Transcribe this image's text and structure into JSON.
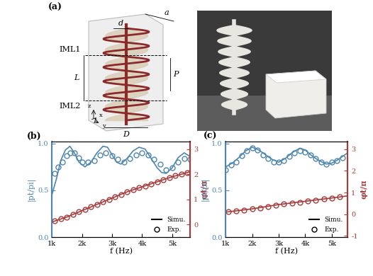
{
  "panel_a": {
    "label": "(a)",
    "dimensions": [
      "a",
      "d",
      "L",
      "P",
      "D"
    ],
    "sections": [
      "IML1",
      "IML2"
    ],
    "coordinate_axes": [
      "z",
      "x",
      "y"
    ]
  },
  "chart_data": [
    {
      "type": "line",
      "title": "(b)",
      "x_label": "f (Hz)",
      "y_label": "|pt/pi|",
      "y2_label": "φt/π",
      "xlim": [
        1000,
        5600
      ],
      "xticks": [
        {
          "value": 1000,
          "label": "1k"
        },
        {
          "value": 2000,
          "label": "2k"
        },
        {
          "value": 3000,
          "label": "3k"
        },
        {
          "value": 4000,
          "label": "4k"
        },
        {
          "value": 5000,
          "label": "5k"
        }
      ],
      "ylim": [
        0,
        1.02
      ],
      "yticks": [
        0.0,
        0.5,
        1.0
      ],
      "y2lim": [
        -0.5,
        3.3
      ],
      "y2ticks": [
        0,
        1,
        2,
        3
      ],
      "legend": "lower right",
      "series": [
        {
          "name": "Simu.",
          "color": "#4f86b0",
          "marker": "none",
          "line_style": "solid",
          "axis": "y",
          "x": [
            1000,
            1150,
            1300,
            1450,
            1600,
            1750,
            1900,
            2100,
            2300,
            2500,
            2700,
            2850,
            3000,
            3150,
            3300,
            3500,
            3700,
            3900,
            4100,
            4300,
            4500,
            4650,
            4800,
            5000,
            5200,
            5400,
            5600
          ],
          "values": [
            0.45,
            0.62,
            0.82,
            0.93,
            0.97,
            0.9,
            0.8,
            0.75,
            0.8,
            0.9,
            0.97,
            0.96,
            0.88,
            0.8,
            0.78,
            0.84,
            0.92,
            0.96,
            0.94,
            0.84,
            0.74,
            0.69,
            0.68,
            0.74,
            0.85,
            0.9,
            0.86
          ]
        },
        {
          "name": "Exp.",
          "color": "#4f86b0",
          "marker": "circle",
          "line_style": "none",
          "axis": "y",
          "x": [
            1100,
            1200,
            1350,
            1500,
            1600,
            1750,
            1900,
            2000,
            2200,
            2400,
            2600,
            2800,
            3000,
            3200,
            3400,
            3600,
            3800,
            4000,
            4200,
            4400,
            4600,
            4800,
            5000,
            5200,
            5400,
            5600
          ],
          "values": [
            0.68,
            0.75,
            0.8,
            0.87,
            0.9,
            0.9,
            0.85,
            0.8,
            0.8,
            0.82,
            0.88,
            0.9,
            0.87,
            0.83,
            0.8,
            0.84,
            0.88,
            0.9,
            0.88,
            0.83,
            0.78,
            0.72,
            0.74,
            0.8,
            0.84,
            0.83
          ]
        },
        {
          "name": "Simu.",
          "color": "#a83a3a",
          "marker": "none",
          "line_style": "solid",
          "axis": "y2",
          "x": [
            1000,
            1500,
            2000,
            2500,
            3000,
            3500,
            4000,
            4500,
            5000,
            5600
          ],
          "values": [
            0.1,
            0.3,
            0.55,
            0.8,
            1.05,
            1.3,
            1.5,
            1.7,
            1.9,
            2.1
          ]
        },
        {
          "name": "Exp.",
          "color": "#a83a3a",
          "marker": "circle",
          "line_style": "none",
          "axis": "y2",
          "x": [
            1100,
            1300,
            1500,
            1700,
            1900,
            2100,
            2300,
            2500,
            2700,
            2900,
            3100,
            3300,
            3500,
            3700,
            3900,
            4100,
            4300,
            4500,
            4700,
            4900,
            5100,
            5300,
            5500
          ],
          "values": [
            0.15,
            0.22,
            0.3,
            0.4,
            0.5,
            0.6,
            0.7,
            0.8,
            0.9,
            1.0,
            1.1,
            1.2,
            1.3,
            1.38,
            1.46,
            1.54,
            1.62,
            1.7,
            1.78,
            1.86,
            1.94,
            2.0,
            2.05
          ]
        }
      ]
    },
    {
      "type": "line",
      "title": "(c)",
      "x_label": "f (Hz)",
      "y_label": "|pt/pi|",
      "y2_label": "φt/π",
      "xlim": [
        1000,
        5600
      ],
      "xticks": [
        {
          "value": 1000,
          "label": "1k"
        },
        {
          "value": 2000,
          "label": "2k"
        },
        {
          "value": 3000,
          "label": "3k"
        },
        {
          "value": 4000,
          "label": "4k"
        },
        {
          "value": 5000,
          "label": "5k"
        }
      ],
      "ylim": [
        0,
        1.02
      ],
      "yticks": [
        0.0,
        0.5,
        1.0
      ],
      "y2lim": [
        -1.05,
        3.35
      ],
      "y2ticks": [
        -1,
        0,
        1,
        2,
        3
      ],
      "legend": "lower right",
      "series": [
        {
          "name": "Simu.",
          "color": "#4f86b0",
          "marker": "none",
          "line_style": "solid",
          "axis": "y",
          "x": [
            1000,
            1250,
            1500,
            1750,
            2000,
            2250,
            2500,
            2750,
            3000,
            3250,
            3500,
            3800,
            4000,
            4200,
            4500,
            4800,
            5000,
            5200,
            5400,
            5600
          ],
          "values": [
            0.75,
            0.79,
            0.85,
            0.92,
            0.96,
            0.93,
            0.88,
            0.83,
            0.8,
            0.84,
            0.9,
            0.95,
            0.93,
            0.88,
            0.82,
            0.78,
            0.79,
            0.82,
            0.86,
            0.9
          ]
        },
        {
          "name": "Exp.",
          "color": "#4f86b0",
          "marker": "circle",
          "line_style": "none",
          "axis": "y",
          "x": [
            1000,
            1200,
            1400,
            1600,
            1800,
            2000,
            2200,
            2400,
            2600,
            2800,
            3000,
            3200,
            3400,
            3600,
            3800,
            4000,
            4200,
            4400,
            4600,
            4800,
            5000,
            5200,
            5400
          ],
          "values": [
            0.72,
            0.77,
            0.8,
            0.87,
            0.92,
            0.95,
            0.93,
            0.88,
            0.84,
            0.8,
            0.8,
            0.82,
            0.86,
            0.9,
            0.92,
            0.91,
            0.88,
            0.84,
            0.8,
            0.78,
            0.8,
            0.82,
            0.85
          ]
        },
        {
          "name": "Simu.",
          "color": "#a83a3a",
          "marker": "none",
          "line_style": "solid",
          "axis": "y2",
          "x": [
            1000,
            2000,
            3000,
            4000,
            5000,
            5600
          ],
          "values": [
            0.1,
            0.25,
            0.45,
            0.6,
            0.75,
            0.85
          ]
        },
        {
          "name": "Exp.",
          "color": "#a83a3a",
          "marker": "circle",
          "line_style": "none",
          "axis": "y2",
          "x": [
            1100,
            1400,
            1700,
            2000,
            2300,
            2600,
            2900,
            3200,
            3500,
            3800,
            4100,
            4400,
            4700,
            5000,
            5300
          ],
          "values": [
            0.12,
            0.16,
            0.2,
            0.25,
            0.3,
            0.35,
            0.42,
            0.48,
            0.52,
            0.56,
            0.62,
            0.66,
            0.7,
            0.75,
            0.8
          ]
        }
      ]
    }
  ]
}
